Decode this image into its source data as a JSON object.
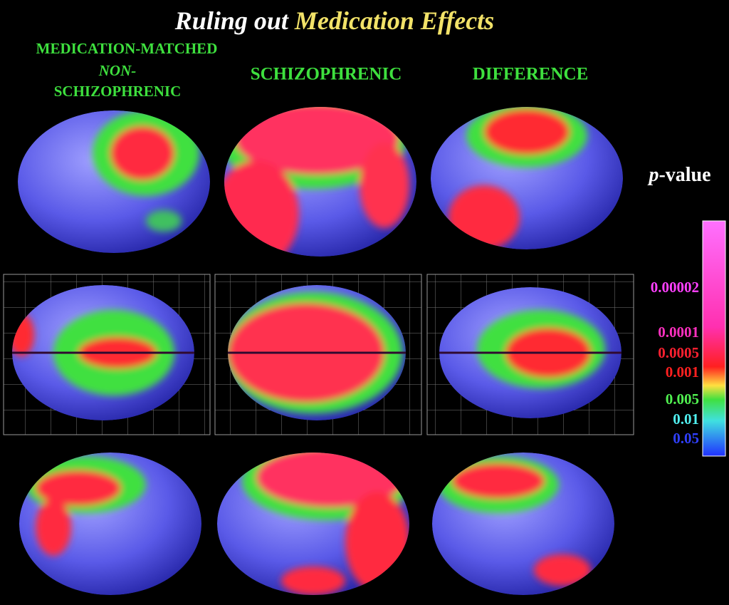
{
  "title": {
    "part1": "Ruling out",
    "part2": "Medication Effects"
  },
  "columns": [
    {
      "lines": [
        "MEDICATION-MATCHED",
        "NON-",
        "SCHIZOPHRENIC"
      ]
    },
    {
      "lines": [
        "SCHIZOPHRENIC"
      ]
    },
    {
      "lines": [
        "DIFFERENCE"
      ]
    }
  ],
  "legend": {
    "title": {
      "italic": "p",
      "rest": "-value"
    },
    "labels": [
      "0.00002",
      "0.0001",
      "0.0005",
      "0.001",
      "0.005",
      "0.01",
      "0.05"
    ]
  }
}
